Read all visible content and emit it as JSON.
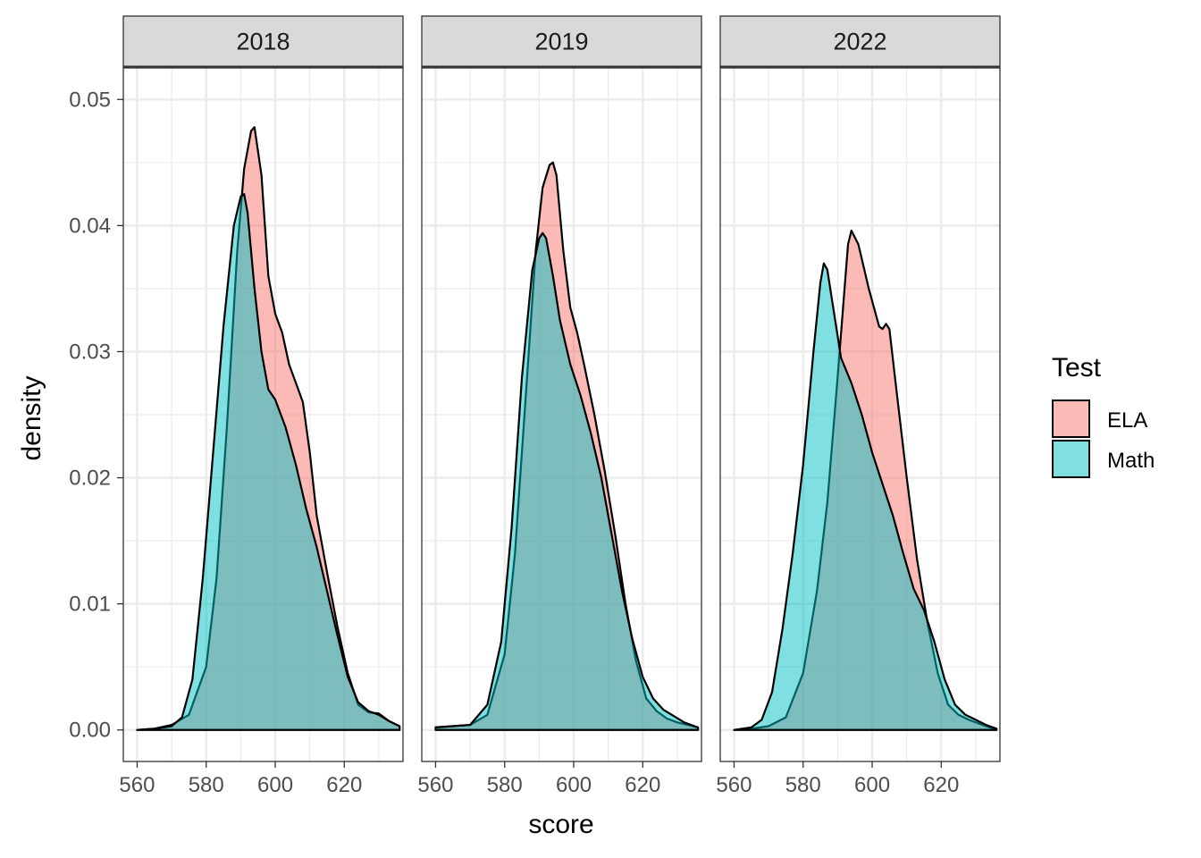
{
  "chart_data": {
    "type": "area",
    "subtype": "density",
    "facet_by": "year",
    "xlabel": "score",
    "ylabel": "density",
    "xlim": [
      556,
      637
    ],
    "ylim": [
      -0.0025,
      0.0525
    ],
    "x_ticks": [
      560,
      580,
      600,
      620
    ],
    "y_ticks": [
      0.0,
      0.01,
      0.02,
      0.03,
      0.04,
      0.05
    ],
    "y_tick_labels": [
      "0.00",
      "0.01",
      "0.02",
      "0.03",
      "0.04",
      "0.05"
    ],
    "grid": true,
    "legend": {
      "title": "Test",
      "position": "right",
      "entries": [
        {
          "label": "ELA",
          "color": "#F8766D"
        },
        {
          "label": "Math",
          "color": "#00BFC4"
        }
      ]
    },
    "fill_alpha": 0.5,
    "panels": [
      {
        "title": "2018",
        "series": [
          {
            "name": "ELA",
            "color": "#F8766D",
            "x": [
              560,
              565,
              570,
              575,
              580,
              583,
              586,
              589,
              591,
              593,
              594,
              596,
              598,
              600,
              602,
              604,
              606,
              608,
              610,
              612,
              615,
              618,
              621,
              624,
              627,
              630,
              633,
              636
            ],
            "y": [
              0.0,
              0.0001,
              0.0004,
              0.0012,
              0.005,
              0.012,
              0.024,
              0.038,
              0.0445,
              0.0475,
              0.0478,
              0.044,
              0.036,
              0.033,
              0.0315,
              0.029,
              0.0275,
              0.026,
              0.022,
              0.017,
              0.0125,
              0.0082,
              0.0045,
              0.002,
              0.0014,
              0.0013,
              0.0007,
              0.0003
            ]
          },
          {
            "name": "Math",
            "color": "#00BFC4",
            "x": [
              560,
              565,
              570,
              573,
              576,
              579,
              582,
              585,
              588,
              590,
              591,
              592,
              594,
              596,
              598,
              600,
              603,
              606,
              609,
              612,
              615,
              618,
              621,
              624,
              627,
              630,
              633,
              636
            ],
            "y": [
              0.0,
              0.0001,
              0.0003,
              0.001,
              0.004,
              0.012,
              0.022,
              0.032,
              0.04,
              0.0423,
              0.0425,
              0.041,
              0.035,
              0.03,
              0.027,
              0.0262,
              0.024,
              0.021,
              0.0175,
              0.0145,
              0.011,
              0.0075,
              0.0042,
              0.0022,
              0.0015,
              0.0012,
              0.0007,
              0.0003
            ]
          }
        ]
      },
      {
        "title": "2019",
        "series": [
          {
            "name": "ELA",
            "color": "#F8766D",
            "x": [
              560,
              565,
              570,
              575,
              580,
              583,
              586,
              589,
              591,
              593,
              594,
              595,
              597,
              599,
              601,
              603,
              606,
              609,
              612,
              615,
              618,
              621,
              624,
              627,
              630,
              633,
              636
            ],
            "y": [
              0.0002,
              0.0003,
              0.0004,
              0.0012,
              0.006,
              0.014,
              0.026,
              0.038,
              0.043,
              0.0448,
              0.045,
              0.044,
              0.038,
              0.0335,
              0.0315,
              0.029,
              0.025,
              0.0205,
              0.0155,
              0.01,
              0.0055,
              0.0025,
              0.0015,
              0.0009,
              0.0006,
              0.0004,
              0.0002
            ]
          },
          {
            "name": "Math",
            "color": "#00BFC4",
            "x": [
              560,
              565,
              570,
              575,
              579,
              582,
              585,
              588,
              590,
              591,
              592,
              594,
              596,
              599,
              602,
              605,
              608,
              611,
              614,
              617,
              620,
              623,
              626,
              629,
              632,
              636
            ],
            "y": [
              0.0002,
              0.0003,
              0.0004,
              0.002,
              0.007,
              0.016,
              0.028,
              0.0365,
              0.039,
              0.0394,
              0.039,
              0.036,
              0.0325,
              0.029,
              0.0265,
              0.0235,
              0.02,
              0.0155,
              0.011,
              0.0072,
              0.0042,
              0.0025,
              0.0016,
              0.0011,
              0.0006,
              0.0002
            ]
          }
        ]
      },
      {
        "title": "2022",
        "series": [
          {
            "name": "ELA",
            "color": "#F8766D",
            "x": [
              560,
              565,
              570,
              575,
              580,
              584,
              587,
              590,
              592,
              593,
              594,
              596,
              599,
              602,
              603,
              604,
              605,
              607,
              610,
              613,
              616,
              619,
              622,
              625,
              628,
              631,
              634,
              636
            ],
            "y": [
              0.0,
              0.0001,
              0.0003,
              0.001,
              0.0045,
              0.011,
              0.018,
              0.028,
              0.035,
              0.0385,
              0.0396,
              0.0385,
              0.035,
              0.032,
              0.0318,
              0.0322,
              0.0318,
              0.027,
              0.02,
              0.0135,
              0.0085,
              0.0045,
              0.002,
              0.0012,
              0.0008,
              0.0005,
              0.0002,
              0.0001
            ]
          },
          {
            "name": "Math",
            "color": "#00BFC4",
            "x": [
              560,
              565,
              568,
              571,
              574,
              577,
              580,
              583,
              585,
              586,
              587,
              589,
              591,
              594,
              597,
              600,
              603,
              606,
              609,
              612,
              615,
              618,
              621,
              624,
              627,
              630,
              633,
              636
            ],
            "y": [
              0.0,
              0.0002,
              0.0008,
              0.003,
              0.008,
              0.014,
              0.021,
              0.03,
              0.0355,
              0.037,
              0.0365,
              0.033,
              0.0295,
              0.0275,
              0.025,
              0.022,
              0.0195,
              0.017,
              0.014,
              0.0112,
              0.0095,
              0.007,
              0.004,
              0.002,
              0.0012,
              0.0008,
              0.0004,
              0.0001
            ]
          }
        ]
      }
    ]
  }
}
